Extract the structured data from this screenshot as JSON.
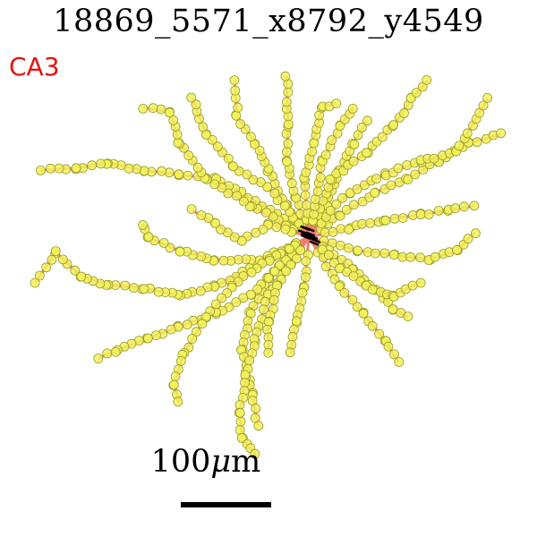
{
  "title": "18869_5571_x8792_y4549",
  "region": {
    "label": "CA3",
    "color": "#e8100c"
  },
  "scale_bar": {
    "value": "100",
    "unit_prefix": "μ",
    "unit": "m"
  },
  "colors": {
    "branch": "#f27b6f",
    "node_fill": "#f2f25a",
    "node_stroke": "#9a9a2a",
    "soma": "#000000"
  }
}
